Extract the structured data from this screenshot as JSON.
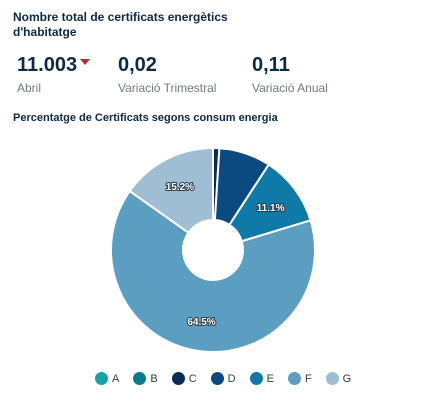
{
  "header": {
    "title": "Nombre total de certificats energètics d'habitatge"
  },
  "kpis": [
    {
      "value": "11.003",
      "label": "Abril",
      "trend": "down"
    },
    {
      "value": "0,02",
      "label": "Variació Trimestral"
    },
    {
      "value": "0,11",
      "label": "Variació Anual"
    }
  ],
  "chart_data": {
    "type": "pie",
    "variant": "donut",
    "title": "Percentatge de Certificats segons consum energia",
    "categories": [
      "A",
      "B",
      "C",
      "D",
      "E",
      "F",
      "G"
    ],
    "values": [
      0.0,
      0.0,
      1.0,
      8.2,
      11.1,
      64.5,
      15.2
    ],
    "labels": [
      "",
      "",
      "",
      "",
      "11.1%",
      "64.5%",
      "15.2%"
    ],
    "colors": [
      "#17a2a6",
      "#0b7a8c",
      "#0b2a55",
      "#0b4a80",
      "#0f7aa8",
      "#5b9ec2",
      "#9fbdd3"
    ],
    "legend_position": "bottom"
  },
  "colors": {
    "accent_down": "#c1272d",
    "text": "#0d2a44",
    "muted": "#6f7a84"
  }
}
